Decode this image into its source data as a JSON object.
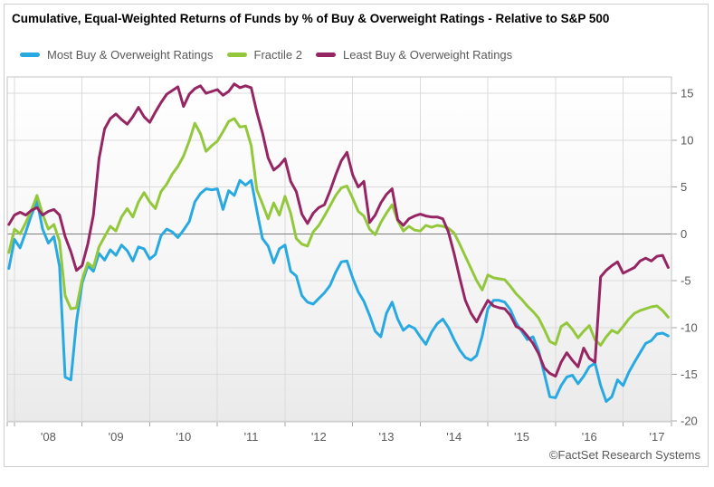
{
  "title": "Cumulative, Equal-Weighted Returns of Funds by % of Buy & Overweight Ratings - Relative to S&P 500",
  "footer": {
    "copyright": "©FactSet Research Systems"
  },
  "legend": {
    "items": [
      {
        "label": "Most Buy & Overweight Ratings",
        "color": "#29a9e1"
      },
      {
        "label": "Fractile 2",
        "color": "#93c83d"
      },
      {
        "label": "Least Buy & Overweight Ratings",
        "color": "#962663"
      }
    ]
  },
  "chart_data": {
    "type": "line",
    "title": "Cumulative, Equal-Weighted Returns of Funds by % of Buy & Overweight Ratings - Relative to S&P 500",
    "x_axis": {
      "tick_labels": [
        "'08",
        "'09",
        "'10",
        "'11",
        "'12",
        "'13",
        "'14",
        "'15",
        "'16",
        "'17"
      ],
      "unit": "monthly points, ~Dec 2007 through 2017",
      "gridlines": "at January of each labeled year"
    },
    "y_axis": {
      "side": "right",
      "ticks": [
        15,
        10,
        5,
        0,
        -5,
        -10,
        -15,
        -20
      ],
      "range": [
        -20.1,
        16.8
      ],
      "zero_line": true
    },
    "grid": true,
    "legend_position": "top",
    "colors": {
      "grid": "#dbdbdb",
      "zero_line": "#7d7d7d",
      "plot_border": "#c6c6c6",
      "axis_text": "#595959"
    },
    "series": [
      {
        "name": "Most Buy & Overweight Ratings",
        "color": "#29a9e1",
        "values": [
          -3.7,
          -0.6,
          -1.5,
          0.2,
          2.0,
          3.5,
          0.5,
          -1.0,
          -0.3,
          -3.5,
          -15.3,
          -15.6,
          -9.4,
          -5.3,
          -3.4,
          -4.0,
          -2.1,
          -2.8,
          -1.7,
          -2.3,
          -1.2,
          -1.8,
          -2.9,
          -1.4,
          -1.6,
          -2.7,
          -2.2,
          -0.2,
          0.5,
          0.2,
          -0.4,
          0.4,
          1.3,
          3.4,
          4.3,
          4.8,
          4.7,
          4.8,
          2.6,
          4.6,
          4.1,
          5.7,
          5.2,
          5.7,
          2.5,
          -0.5,
          -1.3,
          -3.1,
          -1.6,
          -1.2,
          -4.0,
          -4.5,
          -6.6,
          -7.3,
          -7.5,
          -6.9,
          -6.3,
          -5.5,
          -4.1,
          -3.0,
          -2.9,
          -4.7,
          -6.2,
          -7.2,
          -8.7,
          -10.4,
          -11.0,
          -8.5,
          -7.3,
          -9.1,
          -10.3,
          -9.8,
          -10.1,
          -11.0,
          -11.8,
          -10.5,
          -9.6,
          -9.1,
          -10.0,
          -11.3,
          -12.4,
          -13.2,
          -13.5,
          -13.0,
          -10.9,
          -8.0,
          -7.1,
          -7.1,
          -7.3,
          -8.1,
          -9.5,
          -10.4,
          -11.3,
          -11.0,
          -12.5,
          -14.9,
          -17.4,
          -17.5,
          -16.2,
          -15.3,
          -15.1,
          -16.0,
          -15.2,
          -14.2,
          -13.8,
          -16.2,
          -17.9,
          -17.4,
          -15.6,
          -16.2,
          -14.8,
          -13.7,
          -12.7,
          -11.7,
          -11.4,
          -10.7,
          -10.6,
          -10.9
        ]
      },
      {
        "name": "Fractile 2",
        "color": "#93c83d",
        "values": [
          -2.0,
          0.5,
          0.0,
          1.2,
          2.5,
          4.1,
          2.1,
          0.5,
          1.0,
          -0.8,
          -6.6,
          -8.0,
          -7.9,
          -4.9,
          -3.1,
          -3.6,
          -1.4,
          -0.3,
          0.8,
          0.3,
          1.8,
          2.7,
          1.8,
          3.4,
          4.4,
          3.4,
          2.7,
          4.5,
          5.3,
          6.4,
          7.2,
          8.3,
          9.9,
          11.8,
          10.7,
          8.8,
          9.4,
          9.9,
          10.9,
          12.0,
          12.3,
          11.4,
          11.5,
          9.4,
          4.7,
          3.2,
          1.6,
          3.3,
          2.0,
          4.0,
          2.2,
          -0.5,
          -1.1,
          -1.3,
          0.2,
          0.9,
          1.9,
          3.0,
          4.1,
          4.9,
          5.1,
          3.8,
          2.4,
          1.9,
          0.5,
          -0.1,
          1.2,
          2.2,
          3.1,
          1.4,
          0.3,
          0.8,
          0.4,
          0.3,
          0.9,
          0.7,
          0.9,
          0.8,
          0.6,
          0.1,
          -1.1,
          -2.4,
          -3.7,
          -5.0,
          -6.0,
          -4.4,
          -4.7,
          -4.8,
          -4.9,
          -5.6,
          -6.4,
          -7.0,
          -7.7,
          -8.3,
          -9.0,
          -10.2,
          -11.5,
          -11.8,
          -9.9,
          -9.5,
          -10.2,
          -11.1,
          -10.4,
          -9.8,
          -11.3,
          -11.9,
          -11.0,
          -10.3,
          -10.6,
          -9.9,
          -9.1,
          -8.5,
          -8.2,
          -8.0,
          -7.8,
          -7.7,
          -8.2,
          -8.9
        ]
      },
      {
        "name": "Least Buy & Overweight Ratings",
        "color": "#962663",
        "values": [
          1.0,
          2.0,
          2.3,
          2.0,
          2.5,
          2.8,
          2.0,
          2.4,
          2.6,
          2.0,
          -0.3,
          -1.9,
          -3.9,
          -3.4,
          -1.1,
          2.0,
          8.0,
          11.2,
          12.3,
          12.8,
          12.2,
          11.7,
          12.5,
          13.5,
          12.5,
          11.9,
          13.0,
          14.0,
          14.9,
          15.3,
          15.7,
          13.6,
          14.9,
          15.5,
          15.8,
          15.0,
          15.2,
          15.4,
          14.8,
          15.2,
          16.0,
          15.6,
          15.8,
          15.6,
          13.0,
          10.8,
          8.1,
          6.8,
          7.3,
          8.0,
          5.6,
          4.5,
          2.1,
          1.1,
          2.2,
          2.8,
          3.1,
          4.6,
          6.3,
          7.8,
          8.7,
          6.3,
          5.0,
          5.6,
          1.2,
          2.0,
          3.3,
          4.2,
          4.8,
          1.5,
          0.9,
          1.6,
          1.9,
          2.1,
          1.9,
          1.8,
          1.8,
          1.6,
          0.2,
          -2.1,
          -4.7,
          -7.1,
          -8.5,
          -9.4,
          -8.2,
          -7.1,
          -7.7,
          -7.9,
          -8.0,
          -8.7,
          -9.9,
          -10.2,
          -10.9,
          -11.7,
          -12.8,
          -14.3,
          -14.9,
          -15.2,
          -13.7,
          -12.7,
          -13.5,
          -14.2,
          -12.2,
          -13.3,
          -13.7,
          -4.6,
          -3.9,
          -3.4,
          -3.0,
          -4.2,
          -3.9,
          -3.6,
          -2.9,
          -2.6,
          -2.9,
          -2.4,
          -2.3,
          -3.6
        ]
      }
    ]
  }
}
